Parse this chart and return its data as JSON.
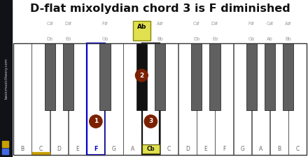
{
  "title": "D-flat mixolydian chord 3 is F diminished",
  "title_fontsize": 11.5,
  "bg_color": "#ffffff",
  "sidebar_bg": "#111118",
  "sidebar_gold": "#c8a000",
  "sidebar_blue": "#4169e1",
  "sidebar_text": "basicmusictheory.com",
  "white_keys": [
    "B",
    "C",
    "D",
    "E",
    "F",
    "G",
    "A",
    "Cb",
    "C",
    "D",
    "E",
    "F",
    "G",
    "A",
    "B",
    "C"
  ],
  "n_white": 16,
  "black_gaps": [
    1,
    2,
    4,
    6,
    7,
    9,
    10,
    12,
    13,
    14
  ],
  "bk_label_top": [
    "C#",
    "D#",
    "F#",
    "Ab",
    "A#",
    "C#",
    "D#",
    "F#",
    "G#",
    "A#"
  ],
  "bk_label_bot": [
    "Db",
    "Eb",
    "Gb",
    "",
    "Bb",
    "Db",
    "Eb",
    "Gb",
    "Ab",
    "Bb"
  ],
  "note1_wi": 4,
  "note2_bi": 3,
  "note3_wi": 7,
  "note_color": "#7b2000",
  "note1_outline": "#0000cc",
  "highlight_yellow": "#e0e050",
  "c_underline_wi": 1,
  "c_underline_color": "#c8a000",
  "white_color": "#ffffff",
  "black_color": "#606060",
  "black_active": "#111111",
  "outline_color": "#333333",
  "label_gray": "#999999",
  "key_gray": "#666666"
}
